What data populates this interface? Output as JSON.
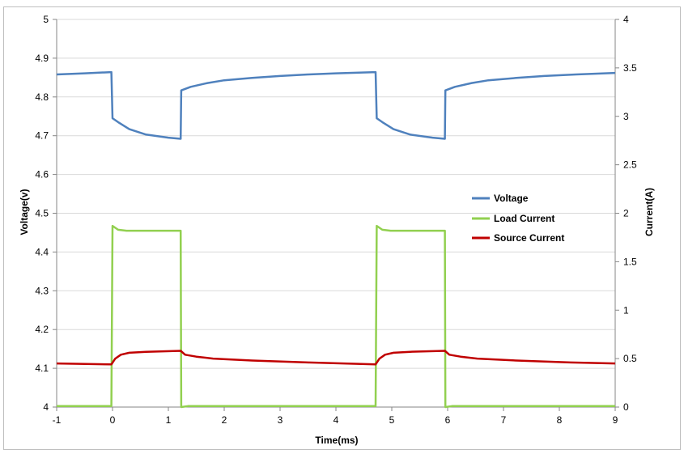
{
  "chart_data": {
    "type": "line",
    "title": "",
    "xlabel": "Time(ms)",
    "ylabel_left": "Voltage(v)",
    "ylabel_right": "Current(A)",
    "xlim": [
      -1,
      9
    ],
    "ylim_left": [
      4,
      5
    ],
    "ylim_right": [
      0,
      4
    ],
    "x_ticks": [
      "-1",
      "0",
      "1",
      "2",
      "3",
      "4",
      "5",
      "6",
      "7",
      "8",
      "9"
    ],
    "y_left_ticks": [
      "4",
      "4.1",
      "4.2",
      "4.3",
      "4.4",
      "4.5",
      "4.6",
      "4.7",
      "4.8",
      "4.9",
      "5"
    ],
    "y_right_ticks": [
      "0",
      "0.5",
      "1",
      "1.5",
      "2",
      "2.5",
      "3",
      "3.5",
      "4"
    ],
    "grid": "horizontal",
    "legend_position": "right",
    "series": [
      {
        "name": "Voltage",
        "axis": "left",
        "color": "#4f81bd",
        "points": [
          [
            -1,
            4.858
          ],
          [
            -0.5,
            4.861
          ],
          [
            -0.02,
            4.864
          ],
          [
            0.0,
            4.745
          ],
          [
            0.1,
            4.735
          ],
          [
            0.3,
            4.717
          ],
          [
            0.6,
            4.703
          ],
          [
            1.0,
            4.695
          ],
          [
            1.22,
            4.692
          ],
          [
            1.23,
            4.817
          ],
          [
            1.4,
            4.826
          ],
          [
            1.7,
            4.836
          ],
          [
            2.0,
            4.843
          ],
          [
            2.5,
            4.849
          ],
          [
            3.0,
            4.854
          ],
          [
            3.5,
            4.858
          ],
          [
            4.0,
            4.861
          ],
          [
            4.71,
            4.864
          ],
          [
            4.73,
            4.745
          ],
          [
            4.83,
            4.735
          ],
          [
            5.03,
            4.717
          ],
          [
            5.33,
            4.703
          ],
          [
            5.73,
            4.695
          ],
          [
            5.95,
            4.692
          ],
          [
            5.96,
            4.817
          ],
          [
            6.13,
            4.826
          ],
          [
            6.43,
            4.836
          ],
          [
            6.73,
            4.843
          ],
          [
            7.23,
            4.849
          ],
          [
            7.73,
            4.854
          ],
          [
            8.3,
            4.858
          ],
          [
            9.0,
            4.862
          ]
        ]
      },
      {
        "name": "Load Current",
        "axis": "right",
        "color": "#92d050",
        "points": [
          [
            -1,
            0.01
          ],
          [
            -0.02,
            0.01
          ],
          [
            0.0,
            1.87
          ],
          [
            0.1,
            1.83
          ],
          [
            0.25,
            1.82
          ],
          [
            1.22,
            1.82
          ],
          [
            1.23,
            0.0
          ],
          [
            1.35,
            0.01
          ],
          [
            4.71,
            0.01
          ],
          [
            4.73,
            1.87
          ],
          [
            4.83,
            1.83
          ],
          [
            4.98,
            1.82
          ],
          [
            5.95,
            1.82
          ],
          [
            5.96,
            0.0
          ],
          [
            6.08,
            0.01
          ],
          [
            9.0,
            0.01
          ]
        ]
      },
      {
        "name": "Source Current",
        "axis": "right",
        "color": "#c00000",
        "points": [
          [
            -1,
            0.45
          ],
          [
            -0.02,
            0.44
          ],
          [
            0.05,
            0.5
          ],
          [
            0.15,
            0.54
          ],
          [
            0.3,
            0.56
          ],
          [
            0.6,
            0.57
          ],
          [
            1.22,
            0.58
          ],
          [
            1.3,
            0.54
          ],
          [
            1.5,
            0.52
          ],
          [
            1.8,
            0.5
          ],
          [
            2.5,
            0.48
          ],
          [
            3.5,
            0.46
          ],
          [
            4.71,
            0.44
          ],
          [
            4.78,
            0.5
          ],
          [
            4.88,
            0.54
          ],
          [
            5.03,
            0.56
          ],
          [
            5.33,
            0.57
          ],
          [
            5.95,
            0.58
          ],
          [
            6.03,
            0.54
          ],
          [
            6.23,
            0.52
          ],
          [
            6.53,
            0.5
          ],
          [
            7.23,
            0.48
          ],
          [
            8.2,
            0.46
          ],
          [
            9.0,
            0.45
          ]
        ]
      }
    ]
  }
}
